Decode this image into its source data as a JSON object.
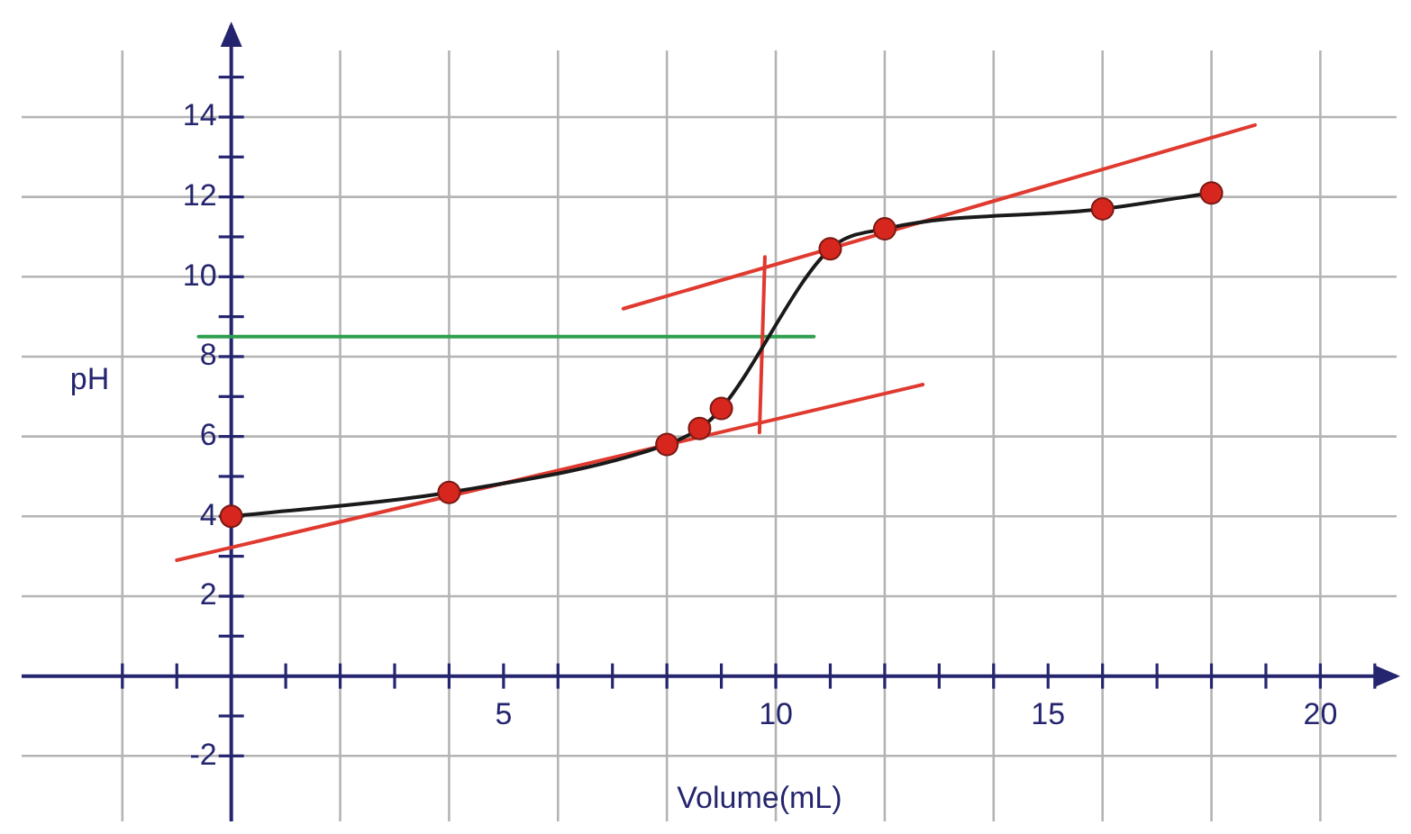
{
  "chart_data": {
    "type": "line",
    "xlabel": "Volume(mL)",
    "ylabel": "pH",
    "xlim": [
      -3.85,
      21.4
    ],
    "ylim": [
      -3.64,
      16.3
    ],
    "xticks": [
      {
        "value": -2,
        "label": null
      },
      {
        "value": -1,
        "label": null
      },
      {
        "value": 1,
        "label": null
      },
      {
        "value": 2,
        "label": null
      },
      {
        "value": 3,
        "label": null
      },
      {
        "value": 4,
        "label": null
      },
      5,
      {
        "value": 6,
        "label": null
      },
      {
        "value": 7,
        "label": null
      },
      {
        "value": 8,
        "label": null
      },
      {
        "value": 9,
        "label": null
      },
      10,
      {
        "value": 11,
        "label": null
      },
      {
        "value": 12,
        "label": null
      },
      {
        "value": 13,
        "label": null
      },
      {
        "value": 14,
        "label": null
      },
      15,
      {
        "value": 16,
        "label": null
      },
      {
        "value": 17,
        "label": null
      },
      {
        "value": 18,
        "label": null
      },
      {
        "value": 19,
        "label": null
      },
      20,
      {
        "value": 21,
        "label": null
      }
    ],
    "yticks": [
      {
        "value": -1,
        "label": null
      },
      -2,
      {
        "value": 1,
        "label": null
      },
      2,
      {
        "value": 3,
        "label": null
      },
      4,
      {
        "value": 5,
        "label": null
      },
      6,
      {
        "value": 7,
        "label": null
      },
      8,
      {
        "value": 9,
        "label": null
      },
      10,
      {
        "value": 11,
        "label": null
      },
      12,
      {
        "value": 13,
        "label": null
      },
      14,
      {
        "value": 15,
        "label": null
      }
    ],
    "grid": true,
    "legend": false,
    "series": [
      {
        "color": "#1a1a1a",
        "colors": [
          "#d7261e",
          "#d7261e",
          "#d7261e",
          "#d7261e",
          "#d7261e",
          "#d7261e",
          "#d7261e",
          "#d7261e",
          "#d7261e"
        ],
        "marker": "circle",
        "x": [
          0,
          4,
          8,
          8.6,
          9,
          11,
          12,
          16,
          18
        ],
        "values": [
          4,
          4.6,
          5.8,
          6.2,
          6.7,
          10.7,
          11.2,
          11.7,
          12.1
        ]
      },
      {
        "color": "#e03a30",
        "marker": "none",
        "x": [
          -1,
          12.7
        ],
        "values": [
          2.9,
          7.3
        ]
      },
      {
        "color": "#e03a30",
        "marker": "none",
        "x": [
          7.2,
          18.8
        ],
        "values": [
          9.2,
          13.8
        ]
      },
      {
        "color": "#e03a30",
        "marker": "none",
        "x": [
          9.8,
          9.7
        ],
        "values": [
          10.5,
          6.1
        ]
      },
      {
        "color": "#2e9e4f",
        "marker": "none",
        "x": [
          -0.6,
          10.7
        ],
        "values": [
          8.5,
          8.5
        ]
      }
    ]
  }
}
